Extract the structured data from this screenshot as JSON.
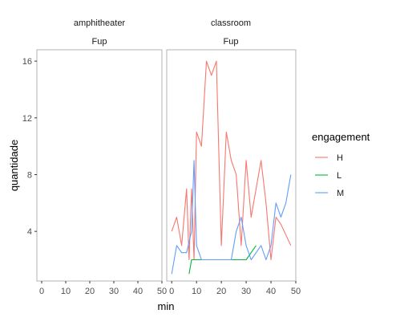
{
  "chart_data": {
    "type": "line",
    "xlabel": "min",
    "ylabel": "quantidade",
    "xlim": [
      -2,
      50
    ],
    "ylim": [
      0.5,
      16.8
    ],
    "x_ticks": [
      0,
      10,
      20,
      30,
      40,
      50
    ],
    "y_ticks": [
      4,
      8,
      12,
      16
    ],
    "grid": false,
    "legend": {
      "title": "engagement",
      "placement": "right",
      "entries": [
        "H",
        "L",
        "M"
      ]
    },
    "colors": {
      "H": "#F8766D",
      "L": "#00BA38",
      "M": "#619CFF"
    },
    "facets": [
      {
        "strip": "amphitheater",
        "substrip": "Fup",
        "series": []
      },
      {
        "strip": "classroom",
        "substrip": "Fup",
        "series": [
          {
            "name": "H",
            "points": [
              [
                0,
                4
              ],
              [
                2,
                5
              ],
              [
                4,
                3
              ],
              [
                6,
                7
              ],
              [
                7,
                2
              ],
              [
                8,
                7
              ],
              [
                9,
                2
              ],
              [
                10,
                11
              ],
              [
                12,
                10
              ],
              [
                14,
                16
              ],
              [
                16,
                15
              ],
              [
                18,
                16
              ],
              [
                20,
                3
              ],
              [
                22,
                11
              ],
              [
                24,
                9
              ],
              [
                26,
                8
              ],
              [
                28,
                3
              ],
              [
                30,
                9
              ],
              [
                32,
                5
              ],
              [
                34,
                7
              ],
              [
                36,
                9
              ],
              [
                38,
                6
              ],
              [
                40,
                2
              ],
              [
                42,
                5
              ],
              [
                44,
                4.5
              ],
              [
                48,
                3
              ]
            ]
          },
          {
            "name": "L",
            "points": [
              [
                7,
                1
              ],
              [
                8,
                2
              ],
              [
                10,
                2
              ],
              [
                12,
                2
              ],
              [
                30,
                2
              ],
              [
                34,
                3
              ]
            ]
          },
          {
            "name": "M",
            "points": [
              [
                0,
                1
              ],
              [
                2,
                3
              ],
              [
                4,
                2.5
              ],
              [
                6,
                2.5
              ],
              [
                8,
                4
              ],
              [
                9,
                9
              ],
              [
                10,
                3
              ],
              [
                12,
                2
              ],
              [
                24,
                2
              ],
              [
                26,
                4
              ],
              [
                28,
                5
              ],
              [
                30,
                3
              ],
              [
                32,
                2
              ],
              [
                34,
                2.5
              ],
              [
                36,
                3
              ],
              [
                38,
                2
              ],
              [
                40,
                3
              ],
              [
                42,
                6
              ],
              [
                44,
                5
              ],
              [
                46,
                6
              ],
              [
                48,
                8
              ]
            ]
          }
        ]
      }
    ]
  }
}
